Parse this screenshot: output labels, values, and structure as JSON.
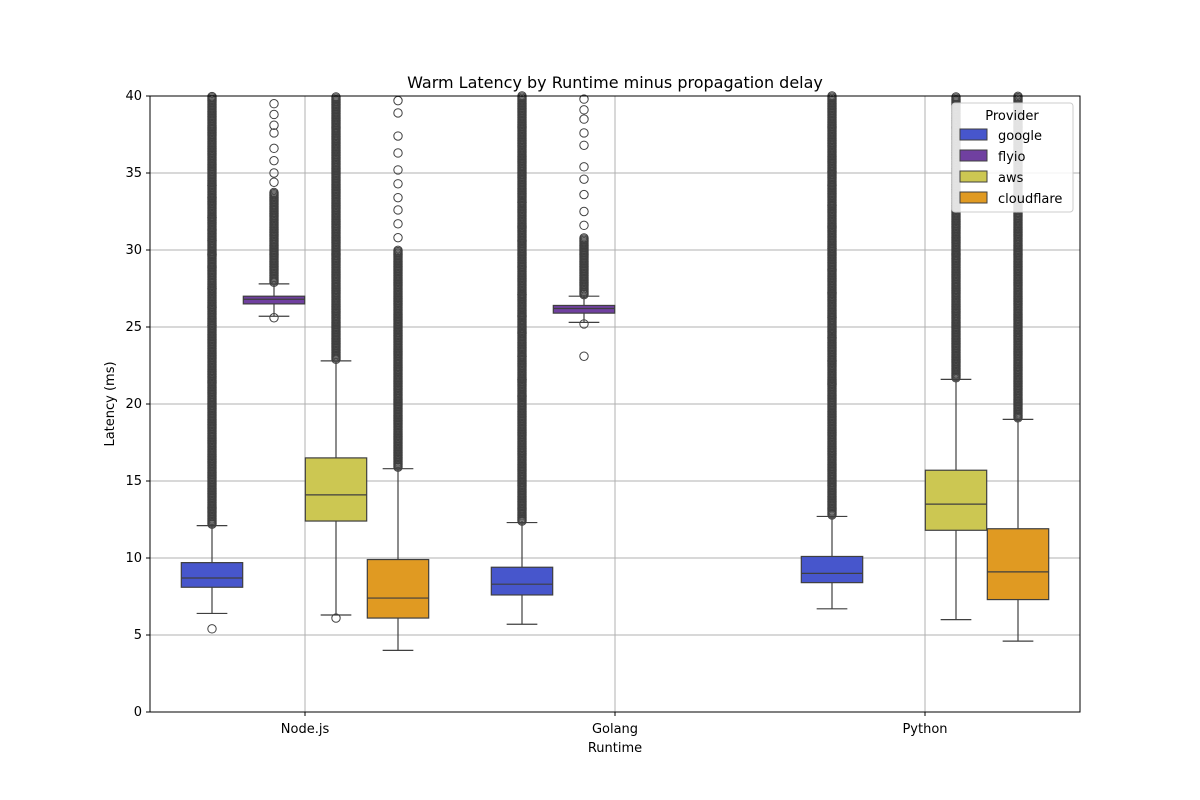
{
  "chart_data": {
    "type": "box",
    "title": "Warm  Latency by Runtime minus propagation delay",
    "xlabel": "Runtime",
    "ylabel": "Latency (ms)",
    "categories": [
      "Node.js",
      "Golang",
      "Python"
    ],
    "ylim": [
      0,
      40
    ],
    "yticks": [
      0,
      5,
      10,
      15,
      20,
      25,
      30,
      35,
      40
    ],
    "grid": true,
    "legend": {
      "title": "Provider",
      "position": "top-right"
    },
    "series": [
      {
        "name": "google",
        "color": "#4756cc",
        "boxes": [
          {
            "category": "Node.js",
            "whisker_low": 6.4,
            "q1": 8.1,
            "median": 8.7,
            "q3": 9.7,
            "whisker_high": 12.1,
            "outliers_low": [
              5.4
            ],
            "outliers_high_range": [
              12.1,
              40
            ],
            "outliers_high_sparse": [
              34.2,
              33.4,
              32.1,
              31.3,
              30.6,
              29.7,
              28.9,
              27.5,
              26.3,
              25.1
            ]
          },
          {
            "category": "Golang",
            "whisker_low": 5.7,
            "q1": 7.6,
            "median": 8.3,
            "q3": 9.4,
            "whisker_high": 12.3,
            "outliers_low": [],
            "outliers_high_range": [
              12.3,
              40
            ],
            "outliers_high_sparse": [
              33.1,
              31.5,
              30.6,
              28.9,
              27.1,
              25.7,
              24.6,
              23.1,
              21.6,
              20.5
            ]
          },
          {
            "category": "Python",
            "whisker_low": 6.7,
            "q1": 8.4,
            "median": 9.0,
            "q3": 10.1,
            "whisker_high": 12.7,
            "outliers_low": [],
            "outliers_high_range": [
              12.7,
              40
            ],
            "outliers_high_sparse": [
              35.1,
              34.2,
              32.9,
              31.5,
              30.1,
              28.7,
              27.2,
              25.6,
              24.3,
              22.8,
              21.3
            ]
          }
        ]
      },
      {
        "name": "flyio",
        "color": "#7040a0",
        "boxes": [
          {
            "category": "Node.js",
            "whisker_low": 25.7,
            "q1": 26.5,
            "median": 26.8,
            "q3": 27.0,
            "whisker_high": 27.8,
            "outliers_low": [
              25.6
            ],
            "outliers_high_range": [
              27.8,
              33.8
            ],
            "outliers_high_sparse": [
              39.5,
              38.8,
              38.1,
              37.6,
              36.6,
              35.8,
              35.0,
              34.4
            ]
          },
          {
            "category": "Golang",
            "whisker_low": 25.3,
            "q1": 25.9,
            "median": 26.2,
            "q3": 26.4,
            "whisker_high": 27.0,
            "outliers_low": [
              25.2,
              23.1
            ],
            "outliers_high_range": [
              27.0,
              30.8
            ],
            "outliers_high_sparse": [
              39.8,
              39.1,
              38.5,
              37.6,
              36.8,
              35.4,
              34.6,
              33.6,
              32.5,
              31.6
            ]
          }
        ]
      },
      {
        "name": "aws",
        "color": "#ccc752",
        "boxes": [
          {
            "category": "Node.js",
            "whisker_low": 6.3,
            "q1": 12.4,
            "median": 14.1,
            "q3": 16.5,
            "whisker_high": 22.8,
            "outliers_low": [
              6.1
            ],
            "outliers_high_range": [
              22.8,
              40
            ],
            "outliers_high_sparse": []
          },
          {
            "category": "Python",
            "whisker_low": 6.0,
            "q1": 11.8,
            "median": 13.5,
            "q3": 15.7,
            "whisker_high": 21.6,
            "outliers_low": [],
            "outliers_high_range": [
              21.6,
              40
            ],
            "outliers_high_sparse": []
          }
        ]
      },
      {
        "name": "cloudflare",
        "color": "#e09a22",
        "boxes": [
          {
            "category": "Node.js",
            "whisker_low": 4.0,
            "q1": 6.1,
            "median": 7.4,
            "q3": 9.9,
            "whisker_high": 15.8,
            "outliers_low": [],
            "outliers_high_range": [
              15.8,
              30
            ],
            "outliers_high_sparse": [
              39.7,
              38.9,
              37.4,
              36.3,
              35.2,
              34.3,
              33.4,
              32.6,
              31.7,
              30.8
            ]
          },
          {
            "category": "Python",
            "whisker_low": 4.6,
            "q1": 7.3,
            "median": 9.1,
            "q3": 11.9,
            "whisker_high": 19.0,
            "outliers_low": [],
            "outliers_high_range": [
              19.0,
              40
            ],
            "outliers_high_sparse": []
          }
        ]
      }
    ]
  }
}
